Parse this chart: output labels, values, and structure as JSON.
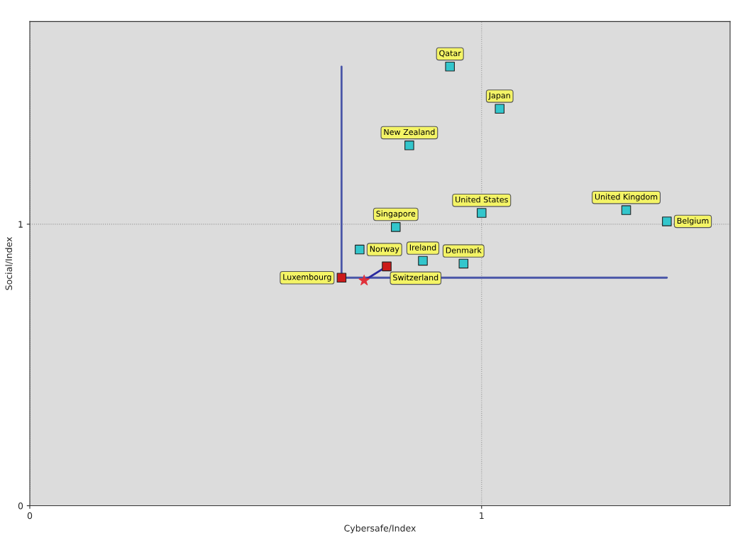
{
  "chart_data": {
    "type": "scatter",
    "xlabel": "Cybersafe/Index",
    "ylabel": "Social/Index",
    "xlim": [
      0,
      1.55
    ],
    "ylim": [
      0,
      1.72
    ],
    "xticks": [
      0,
      1
    ],
    "yticks": [
      0,
      1
    ],
    "grid": true,
    "marker": "square",
    "series": [
      {
        "type": "line",
        "marker": "none",
        "color": "#4a56a8",
        "x": [
          0.69,
          0.69,
          1.41
        ],
        "values": [
          1.56,
          0.81,
          0.81
        ]
      },
      {
        "type": "line",
        "marker": "none",
        "color": "#2a2aa0",
        "x": [
          0.74,
          0.79
        ],
        "values": [
          0.8,
          0.85
        ]
      },
      {
        "type": "scatter",
        "marker": "star",
        "color": "#e0303a",
        "x": [
          0.74
        ],
        "values": [
          0.8
        ]
      },
      {
        "name": "Qatar",
        "color": "#33c6cc",
        "x": [
          0.93
        ],
        "values": [
          1.56
        ]
      },
      {
        "name": "Japan",
        "color": "#33c6cc",
        "x": [
          1.04
        ],
        "values": [
          1.41
        ]
      },
      {
        "name": "New Zealand",
        "color": "#33c6cc",
        "x": [
          0.84
        ],
        "values": [
          1.28
        ]
      },
      {
        "name": "United States",
        "color": "#33c6cc",
        "x": [
          1.0
        ],
        "values": [
          1.04
        ]
      },
      {
        "name": "Singapore",
        "color": "#33c6cc",
        "x": [
          0.81
        ],
        "values": [
          0.99
        ]
      },
      {
        "name": "Norway",
        "color": "#33c6cc",
        "x": [
          0.73
        ],
        "values": [
          0.91
        ]
      },
      {
        "name": "Switzerland",
        "color": "#cc1a1a",
        "x": [
          0.79
        ],
        "values": [
          0.85
        ]
      },
      {
        "name": "Ireland",
        "color": "#33c6cc",
        "x": [
          0.87
        ],
        "values": [
          0.87
        ]
      },
      {
        "name": "Denmark",
        "color": "#33c6cc",
        "x": [
          0.96
        ],
        "values": [
          0.86
        ]
      },
      {
        "name": "Luxembourg",
        "color": "#cc1a1a",
        "x": [
          0.69
        ],
        "values": [
          0.81
        ]
      },
      {
        "name": "United Kingdom",
        "color": "#33c6cc",
        "x": [
          1.32
        ],
        "values": [
          1.05
        ]
      },
      {
        "name": "Belgium",
        "color": "#33c6cc",
        "x": [
          1.41
        ],
        "values": [
          1.01
        ]
      }
    ]
  }
}
